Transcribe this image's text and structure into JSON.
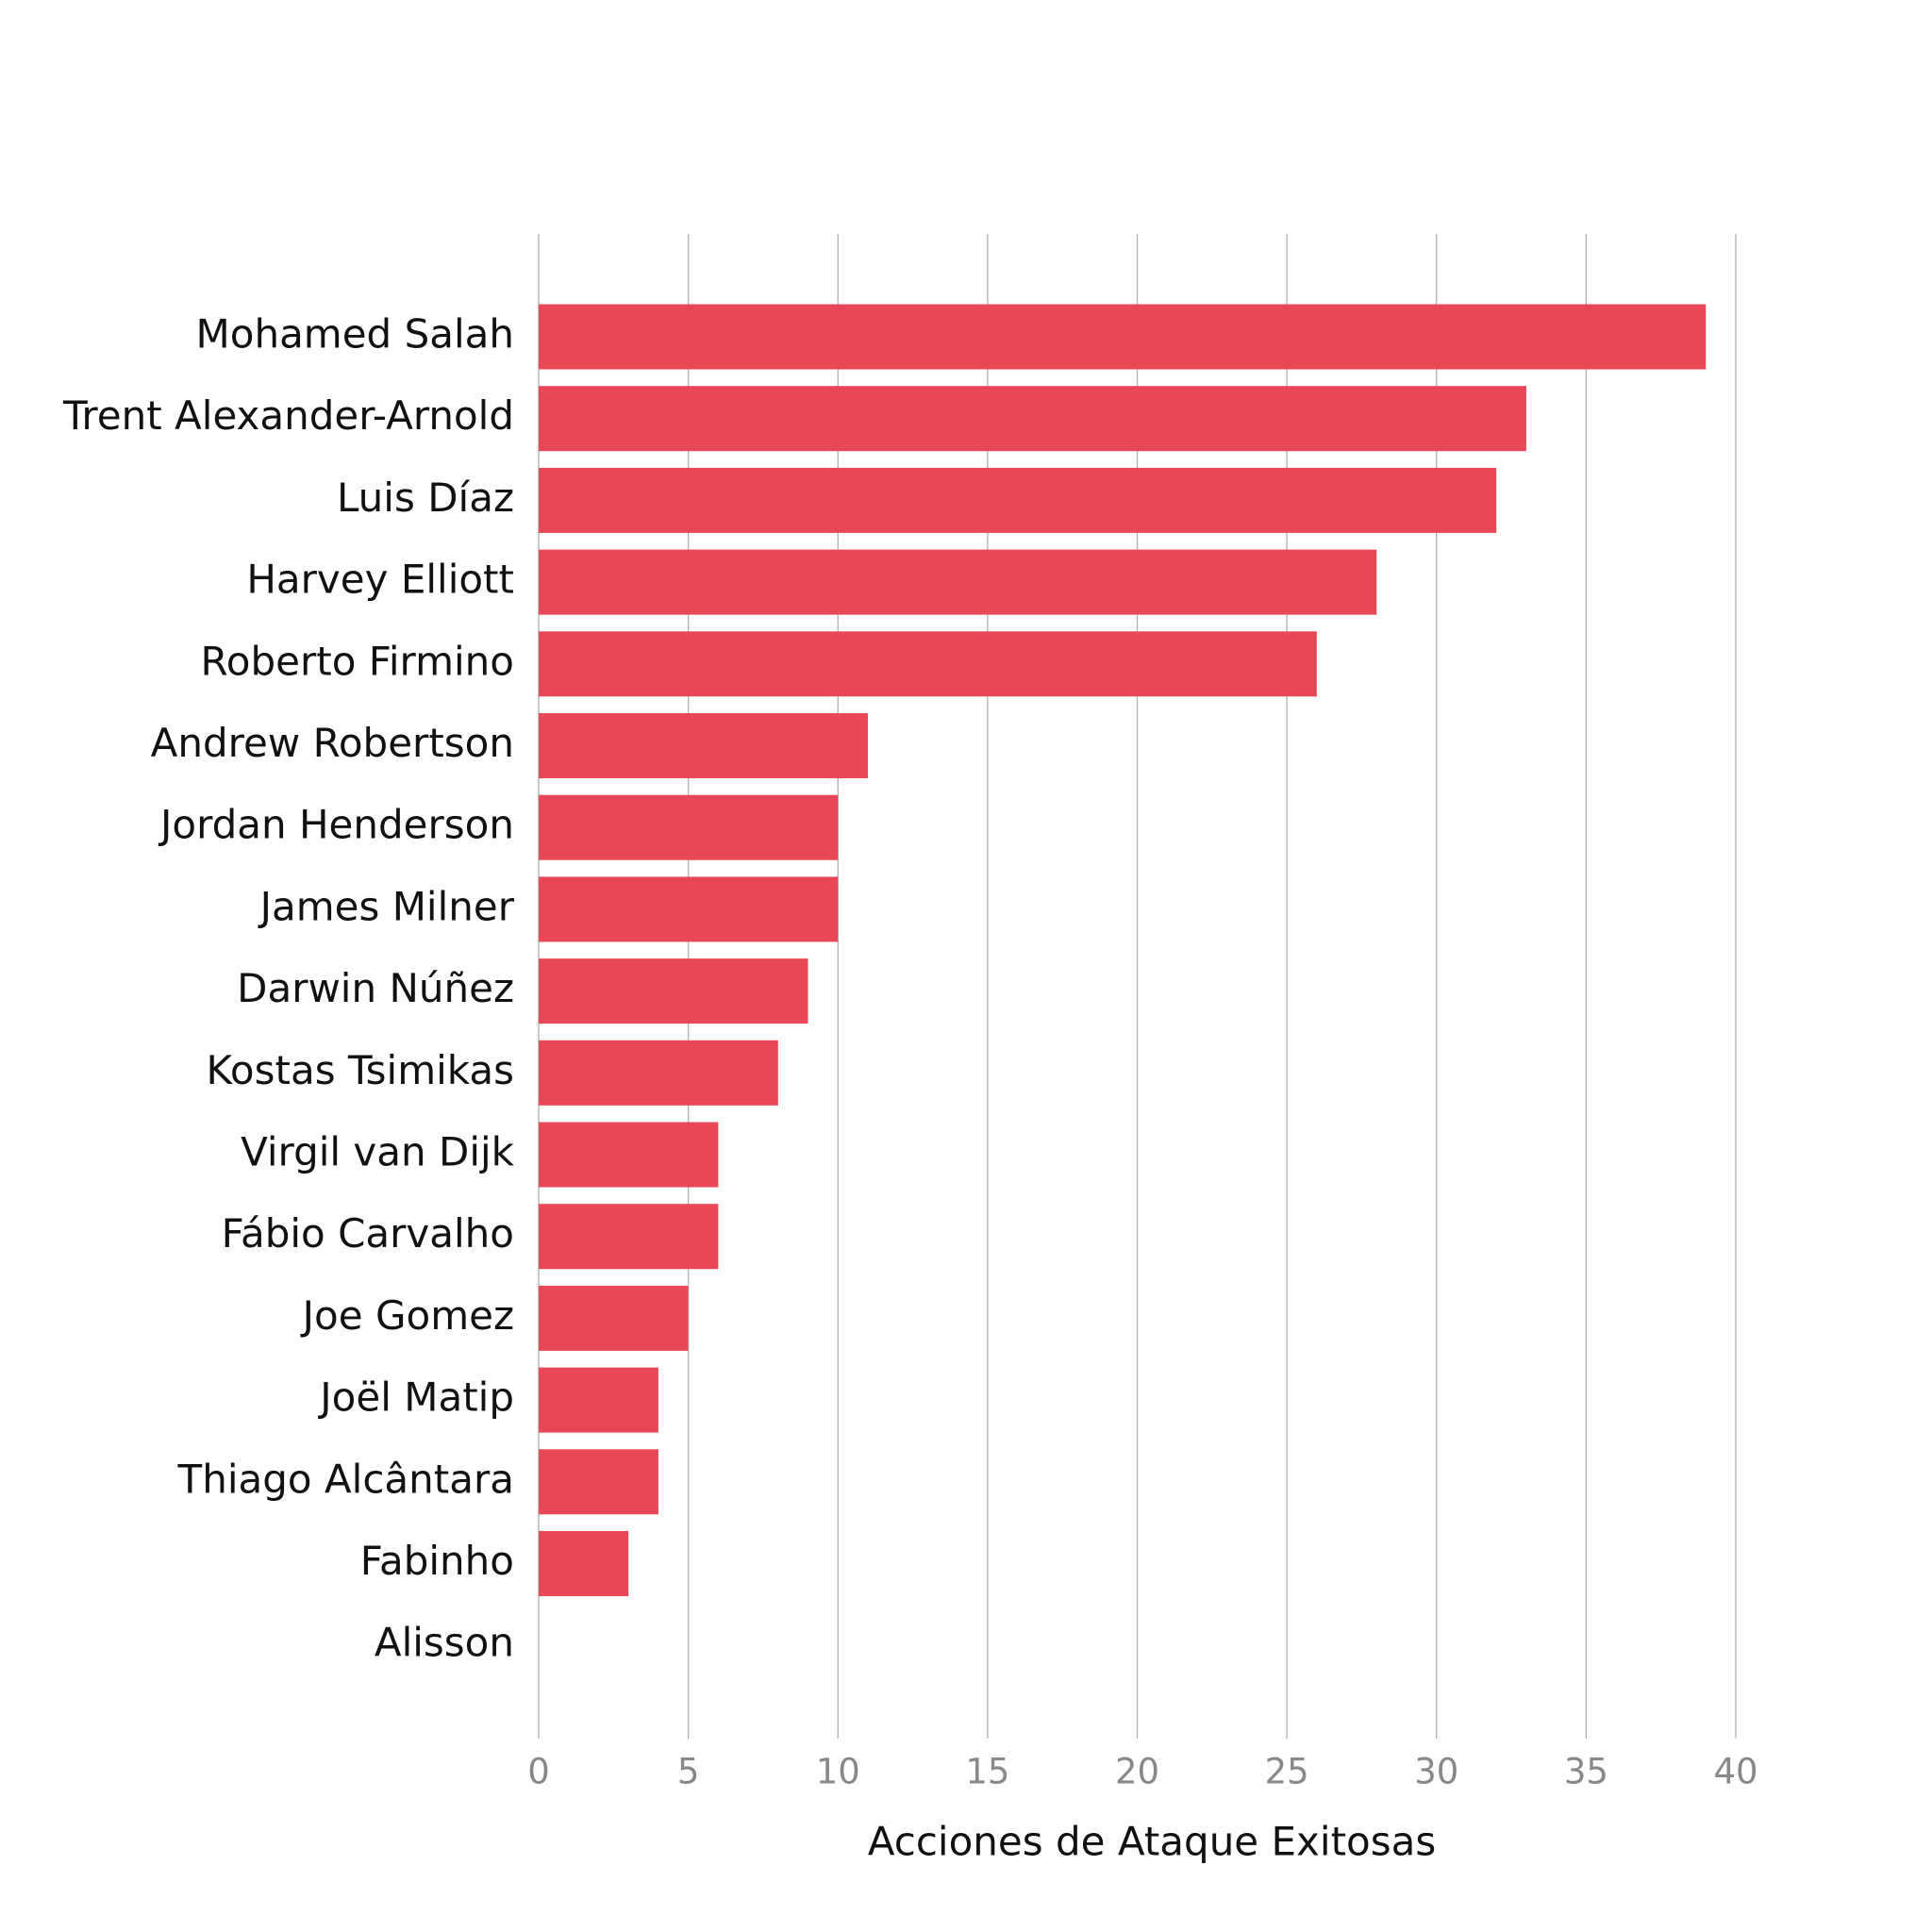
{
  "chart_data": {
    "type": "bar",
    "orientation": "horizontal",
    "x_label": "Acciones de Ataque Exitosas",
    "categories": [
      "Mohamed Salah",
      "Trent Alexander-Arnold",
      "Luis Díaz",
      "Harvey Elliott",
      "Roberto Firmino",
      "Andrew Robertson",
      "Jordan Henderson",
      "James Milner",
      "Darwin Núñez",
      "Kostas Tsimikas",
      "Virgil van Dijk",
      "Fábio Carvalho",
      "Joe Gomez",
      "Joël Matip",
      "Thiago Alcântara",
      "Fabinho",
      "Alisson"
    ],
    "values": [
      39,
      33,
      32,
      28,
      26,
      11,
      10,
      10,
      9,
      8,
      6,
      6,
      5,
      4,
      4,
      3,
      0
    ],
    "color": "#e84855",
    "xlim": [
      0,
      40
    ],
    "xticks": [
      0,
      5,
      10,
      15,
      20,
      25,
      30,
      35,
      40
    ],
    "grid": true
  }
}
